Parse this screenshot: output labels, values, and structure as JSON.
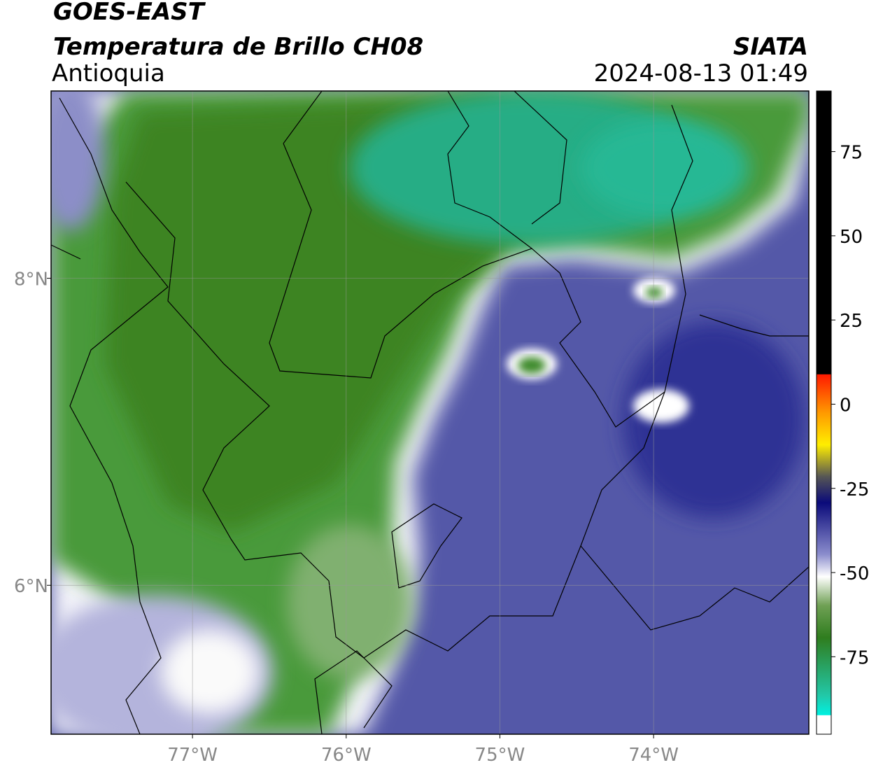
{
  "map": {
    "title": "GOES-EAST",
    "subtitle": "Temperatura de Brillo CH08",
    "region": "Antioquia",
    "source": "SIATA",
    "timestamp": "2024-08-13 01:49",
    "xlim": [
      -77.92,
      -72.99
    ],
    "ylim": [
      5.03,
      9.22
    ],
    "xticks": [
      {
        "value": -77,
        "label": "77°W"
      },
      {
        "value": -76,
        "label": "76°W"
      },
      {
        "value": -75,
        "label": "75°W"
      },
      {
        "value": -74,
        "label": "74°W"
      }
    ],
    "yticks": [
      {
        "value": 8,
        "label": "8°N"
      },
      {
        "value": 6,
        "label": "6°N"
      }
    ],
    "grid": true,
    "colorbar": {
      "lim": [
        -98,
        93
      ],
      "ticks": [
        75,
        50,
        25,
        0,
        -25,
        -50,
        -75
      ]
    }
  }
}
